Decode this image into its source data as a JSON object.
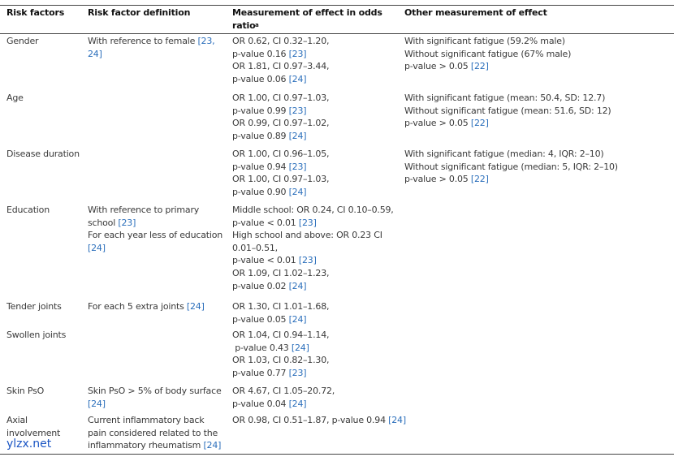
{
  "table": {
    "header": [
      [
        "Risk factors"
      ],
      [
        "Risk factor definition"
      ],
      [
        "Measurement of effect in odds",
        "ratio"
      ],
      [
        "Other measurement of effect"
      ]
    ],
    "header_footnote_mark": "a",
    "rows": [
      [
        [
          "Gender"
        ],
        [
          "With reference to female [23,",
          "24]"
        ],
        [
          "OR 0.62, CI 0.32–1.20,",
          "p-value 0.16 [23]",
          "OR 1.81, CI 0.97–3.44,",
          "p-value 0.06 [24]"
        ],
        [
          "With significant fatigue (59.2% male)",
          "Without significant fatigue (67% male)",
          "p-value > 0.05 [22]"
        ]
      ],
      [
        [
          "Age"
        ],
        [],
        [
          "OR 1.00, CI 0.97–1.03,",
          "p-value 0.99 [23]",
          "OR 0.99, CI 0.97–1.02,",
          "p-value 0.89 [24]"
        ],
        [
          "With significant fatigue (mean: 50.4, SD: 12.7)",
          "Without significant fatigue (mean: 51.6, SD: 12)",
          "p-value > 0.05 [22]"
        ]
      ],
      [
        [
          "Disease duration"
        ],
        [],
        [
          "OR 1.00, CI 0.96–1.05,",
          "p-value 0.94 [23]",
          "OR 1.00, CI 0.97–1.03,",
          "p-value 0.90 [24]"
        ],
        [
          "With significant fatigue (median: 4, IQR: 2–10)",
          "Without significant fatigue (median: 5, IQR: 2–10)",
          "p-value > 0.05 [22]"
        ]
      ],
      [
        [
          "Education"
        ],
        [
          "With reference to primary",
          "school [23]",
          "For each year less of education",
          "[24]"
        ],
        [
          "Middle school: OR 0.24, CI 0.10–0.59,",
          "p-value < 0.01 [23]",
          "High school and above: OR 0.23 CI",
          "0.01–0.51,",
          "p-value < 0.01 [23]",
          "OR 1.09, CI 1.02–1.23,",
          "p-value 0.02 [24]"
        ],
        []
      ],
      [
        [
          "Tender joints"
        ],
        [
          "For each 5 extra joints [24]"
        ],
        [
          "OR 1.30, CI 1.01–1.68,",
          "p-value 0.05 [24]"
        ],
        []
      ],
      [
        [
          "Swollen joints"
        ],
        [],
        [
          "OR 1.04, CI 0.94–1.14,",
          " p-value 0.43 [24]",
          "OR 1.03, CI 0.82–1.30,",
          "p-value 0.77 [23]"
        ],
        []
      ],
      [
        [
          "Skin PsO"
        ],
        [
          "Skin PsO > 5% of body surface",
          "[24]"
        ],
        [
          "OR 4.67, CI 1.05–20.72,",
          "p-value 0.04 [24]"
        ],
        []
      ],
      [
        [
          "Axial",
          "involvement"
        ],
        [
          "Current inflammatory back",
          "pain considered related to the",
          "inflammatory rheumatism [24]"
        ],
        [
          "OR 0.98, CI 0.51–1.87, p-value 0.94 [24]"
        ],
        []
      ]
    ]
  },
  "watermark": "ylzx.net"
}
